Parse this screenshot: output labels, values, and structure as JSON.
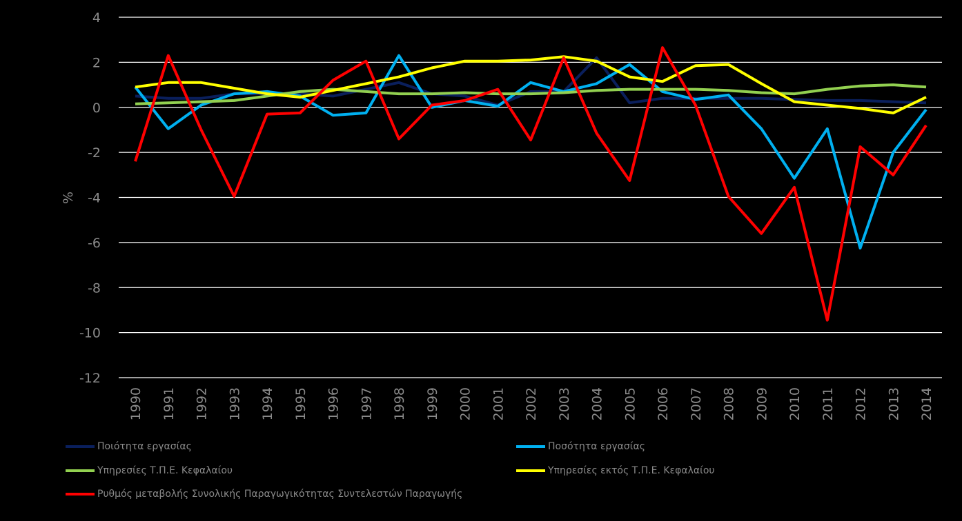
{
  "chart_data": {
    "type": "line",
    "ylabel": "%",
    "ylim": [
      -12,
      4
    ],
    "yticks": [
      4,
      2,
      0,
      -2,
      -4,
      -6,
      -8,
      -10,
      -12
    ],
    "grid": true,
    "legend_position": "bottom",
    "x": [
      "1990",
      "1991",
      "1992",
      "1993",
      "1994",
      "1995",
      "1996",
      "1997",
      "1998",
      "1999",
      "2000",
      "2001",
      "2002",
      "2003",
      "2004",
      "2005",
      "2006",
      "2007",
      "2008",
      "2009",
      "2010",
      "2011",
      "2012",
      "2013",
      "2014"
    ],
    "series": [
      {
        "name": "Ποιότητα εργασίας",
        "color": "#0a1f5c",
        "values": [
          0.5,
          0.4,
          0.4,
          0.6,
          0.6,
          0.6,
          0.5,
          0.8,
          1.1,
          0.6,
          0.5,
          0.1,
          0.7,
          0.7,
          2.2,
          0.2,
          0.4,
          0.4,
          0.4,
          0.4,
          0.35,
          0.3,
          0.3,
          0.25,
          0.2
        ]
      },
      {
        "name": "Ποσότητα εργασίας",
        "color": "#00b0f0",
        "values": [
          0.9,
          -0.95,
          0.1,
          0.6,
          0.7,
          0.5,
          -0.35,
          -0.25,
          2.3,
          0.0,
          0.3,
          0.05,
          1.1,
          0.7,
          1.05,
          1.9,
          0.7,
          0.35,
          0.55,
          -0.95,
          -3.15,
          -0.95,
          -6.25,
          -2.0,
          -0.1
        ]
      },
      {
        "name": "Υπηρεσίες Τ.Π.Ε. Κεφαλαίου",
        "color": "#92d050",
        "values": [
          0.15,
          0.2,
          0.25,
          0.3,
          0.5,
          0.7,
          0.8,
          0.7,
          0.6,
          0.6,
          0.65,
          0.6,
          0.6,
          0.65,
          0.75,
          0.8,
          0.8,
          0.8,
          0.75,
          0.65,
          0.6,
          0.8,
          0.95,
          1.0,
          0.9
        ]
      },
      {
        "name": "Υπηρεσίες εκτός Τ.Π.Ε. Κεφαλαίου",
        "color": "#ffff00",
        "values": [
          0.9,
          1.1,
          1.1,
          0.85,
          0.6,
          0.45,
          0.75,
          1.05,
          1.35,
          1.75,
          2.05,
          2.05,
          2.1,
          2.25,
          2.05,
          1.35,
          1.15,
          1.85,
          1.9,
          1.05,
          0.25,
          0.1,
          -0.05,
          -0.25,
          0.45
        ]
      },
      {
        "name": "Ρυθμός μεταβολής Συνολικής Παραγωγικότητας Συντελεστών Παραγωγής",
        "color": "#ff0000",
        "values": [
          -2.4,
          2.3,
          -1.0,
          -3.95,
          -0.3,
          -0.25,
          1.2,
          2.05,
          -1.4,
          0.1,
          0.3,
          0.8,
          -1.45,
          2.2,
          -1.15,
          -3.25,
          2.65,
          0.1,
          -3.95,
          -5.6,
          -3.55,
          -9.45,
          -1.75,
          -3.0,
          -0.8
        ]
      }
    ]
  }
}
